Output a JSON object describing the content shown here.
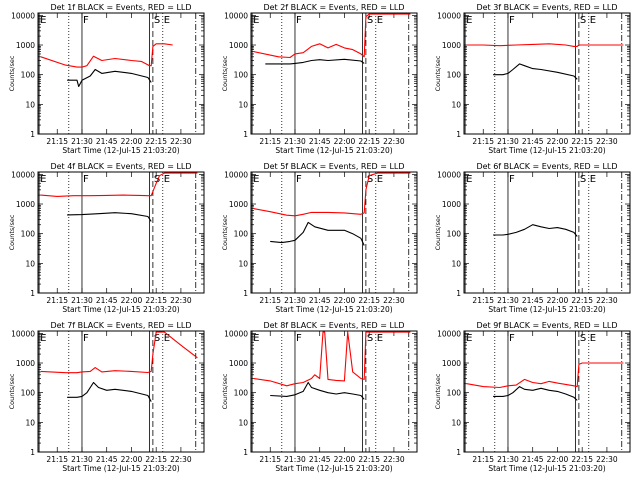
{
  "common": {
    "xlabel": "Start Time (12-Jul-15 21:03:20)",
    "ylabel": "Counts/sec",
    "x_tick_labels": [
      "21:15",
      "21:30",
      "21:45",
      "22:00",
      "22:15",
      "22:30"
    ],
    "x_tick_minutes": [
      15,
      30,
      45,
      60,
      75,
      90
    ],
    "y_tick_labels": [
      "1",
      "10",
      "100",
      "1000",
      "10000"
    ],
    "x_range_minutes": [
      3.33,
      104
    ],
    "y_range": [
      1,
      12000
    ],
    "y_scale": "log",
    "colors": {
      "events": "#000000",
      "lld": "#ff0000",
      "axes": "#000000"
    }
  },
  "chart_data": [
    {
      "type": "line",
      "title": "Det 1f BLACK = Events, RED = LLD",
      "markers": [
        {
          "label": "E",
          "x": 4,
          "style": "solid"
        },
        {
          "label": "F",
          "x": 30,
          "style": "solid"
        },
        {
          "label": "",
          "x": 22,
          "style": "dotted"
        },
        {
          "label": "",
          "x": 71,
          "style": "solid"
        },
        {
          "label": "S",
          "x": 73,
          "style": "dashed"
        },
        {
          "label": "E",
          "x": 79,
          "style": "dotted"
        },
        {
          "label": "",
          "x": 99,
          "style": "dashdot"
        }
      ],
      "series": [
        {
          "color": "#ff0000",
          "x": [
            5,
            20,
            27,
            30,
            33,
            37,
            42,
            50,
            60,
            66,
            71,
            72,
            73,
            75,
            80,
            85
          ],
          "y": [
            400,
            210,
            180,
            180,
            200,
            420,
            300,
            350,
            300,
            280,
            200,
            200,
            900,
            1100,
            1100,
            1000
          ]
        },
        {
          "color": "#000000",
          "x": [
            21,
            27,
            28,
            30,
            35,
            38,
            42,
            50,
            60,
            70,
            72
          ],
          "y": [
            65,
            65,
            40,
            65,
            90,
            150,
            110,
            130,
            110,
            80,
            55
          ]
        }
      ]
    },
    {
      "type": "line",
      "title": "Det 2f BLACK = Events, RED = LLD",
      "markers": [
        {
          "label": "E",
          "x": 4,
          "style": "solid"
        },
        {
          "label": "F",
          "x": 30,
          "style": "solid"
        },
        {
          "label": "",
          "x": 22,
          "style": "dotted"
        },
        {
          "label": "",
          "x": 71,
          "style": "solid"
        },
        {
          "label": "S",
          "x": 73,
          "style": "dashed"
        },
        {
          "label": "E",
          "x": 79,
          "style": "dotted"
        },
        {
          "label": "",
          "x": 99,
          "style": "dashdot"
        }
      ],
      "series": [
        {
          "color": "#ff0000",
          "x": [
            5,
            20,
            27,
            30,
            35,
            40,
            45,
            50,
            55,
            60,
            65,
            70,
            72,
            73,
            75,
            80,
            85,
            95,
            100
          ],
          "y": [
            600,
            400,
            380,
            500,
            550,
            900,
            1100,
            800,
            1050,
            800,
            700,
            500,
            400,
            9000,
            11000,
            11000,
            11000,
            11000,
            11000
          ]
        },
        {
          "color": "#000000",
          "x": [
            12,
            27,
            30,
            35,
            40,
            45,
            50,
            60,
            70,
            72
          ],
          "y": [
            230,
            230,
            240,
            260,
            300,
            320,
            300,
            330,
            290,
            240
          ]
        }
      ]
    },
    {
      "type": "line",
      "title": "Det 3f BLACK = Events, RED = LLD",
      "markers": [
        {
          "label": "E",
          "x": 4,
          "style": "solid"
        },
        {
          "label": "F",
          "x": 30,
          "style": "solid"
        },
        {
          "label": "",
          "x": 22,
          "style": "dotted"
        },
        {
          "label": "",
          "x": 71,
          "style": "solid"
        },
        {
          "label": "S",
          "x": 73,
          "style": "dashed"
        },
        {
          "label": "E",
          "x": 79,
          "style": "dotted"
        },
        {
          "label": "",
          "x": 99,
          "style": "dashdot"
        }
      ],
      "series": [
        {
          "color": "#ff0000",
          "x": [
            5,
            15,
            25,
            35,
            45,
            55,
            65,
            70,
            72,
            73,
            80,
            90,
            100
          ],
          "y": [
            1000,
            1000,
            950,
            1000,
            1050,
            1100,
            1000,
            900,
            900,
            1000,
            1000,
            1000,
            1000
          ]
        },
        {
          "color": "#000000",
          "x": [
            21,
            27,
            30,
            33,
            37,
            40,
            45,
            50,
            60,
            70,
            72
          ],
          "y": [
            100,
            100,
            110,
            150,
            230,
            200,
            160,
            150,
            120,
            90,
            70
          ]
        }
      ]
    },
    {
      "type": "line",
      "title": "Det 4f BLACK = Events, RED = LLD",
      "markers": [
        {
          "label": "E",
          "x": 4,
          "style": "solid"
        },
        {
          "label": "F",
          "x": 30,
          "style": "solid"
        },
        {
          "label": "",
          "x": 22,
          "style": "dotted"
        },
        {
          "label": "",
          "x": 71,
          "style": "solid"
        },
        {
          "label": "S",
          "x": 73,
          "style": "dashed"
        },
        {
          "label": "E",
          "x": 79,
          "style": "dotted"
        },
        {
          "label": "",
          "x": 99,
          "style": "dashdot"
        }
      ],
      "series": [
        {
          "color": "#ff0000",
          "x": [
            5,
            15,
            25,
            35,
            45,
            55,
            65,
            70,
            72,
            75,
            77,
            80,
            85,
            100
          ],
          "y": [
            2000,
            1800,
            1900,
            1900,
            1950,
            2000,
            1950,
            1900,
            1900,
            5000,
            9000,
            11000,
            11000,
            11000
          ]
        },
        {
          "color": "#000000",
          "x": [
            21,
            30,
            40,
            50,
            60,
            70,
            72
          ],
          "y": [
            430,
            440,
            470,
            510,
            470,
            380,
            260
          ]
        }
      ]
    },
    {
      "type": "line",
      "title": "Det 5f BLACK = Events, RED = LLD",
      "markers": [
        {
          "label": "E",
          "x": 4,
          "style": "solid"
        },
        {
          "label": "F",
          "x": 30,
          "style": "solid"
        },
        {
          "label": "",
          "x": 22,
          "style": "dotted"
        },
        {
          "label": "",
          "x": 71,
          "style": "solid"
        },
        {
          "label": "S",
          "x": 73,
          "style": "dashed"
        },
        {
          "label": "E",
          "x": 79,
          "style": "dotted"
        },
        {
          "label": "",
          "x": 99,
          "style": "dashdot"
        }
      ],
      "series": [
        {
          "color": "#ff0000",
          "x": [
            5,
            15,
            25,
            30,
            35,
            40,
            50,
            60,
            70,
            72,
            73,
            75,
            80,
            100
          ],
          "y": [
            700,
            550,
            420,
            400,
            450,
            520,
            520,
            500,
            450,
            500,
            3000,
            9000,
            11000,
            11000
          ]
        },
        {
          "color": "#000000",
          "x": [
            15,
            22,
            27,
            30,
            35,
            38,
            42,
            50,
            60,
            65,
            70,
            72
          ],
          "y": [
            55,
            50,
            55,
            60,
            110,
            240,
            170,
            130,
            130,
            100,
            70,
            40
          ]
        }
      ]
    },
    {
      "type": "line",
      "title": "Det 6f BLACK = Events, RED = LLD",
      "markers": [
        {
          "label": "E",
          "x": 4,
          "style": "solid"
        },
        {
          "label": "F",
          "x": 30,
          "style": "solid"
        },
        {
          "label": "",
          "x": 22,
          "style": "dotted"
        },
        {
          "label": "",
          "x": 71,
          "style": "solid"
        },
        {
          "label": "S",
          "x": 73,
          "style": "dashed"
        },
        {
          "label": "E",
          "x": 79,
          "style": "dotted"
        },
        {
          "label": "",
          "x": 99,
          "style": "dashdot"
        }
      ],
      "series": [
        {
          "color": "#000000",
          "x": [
            21,
            27,
            30,
            35,
            40,
            45,
            50,
            55,
            60,
            65,
            70,
            72
          ],
          "y": [
            90,
            90,
            95,
            110,
            140,
            200,
            170,
            150,
            160,
            140,
            110,
            80
          ]
        }
      ]
    },
    {
      "type": "line",
      "title": "Det 7f BLACK = Events, RED = LLD",
      "markers": [
        {
          "label": "E",
          "x": 4,
          "style": "solid"
        },
        {
          "label": "F",
          "x": 30,
          "style": "solid"
        },
        {
          "label": "",
          "x": 22,
          "style": "dotted"
        },
        {
          "label": "",
          "x": 71,
          "style": "solid"
        },
        {
          "label": "S",
          "x": 73,
          "style": "dashed"
        },
        {
          "label": "E",
          "x": 79,
          "style": "dotted"
        },
        {
          "label": "",
          "x": 99,
          "style": "dashdot"
        }
      ],
      "series": [
        {
          "color": "#ff0000",
          "x": [
            5,
            20,
            27,
            30,
            35,
            38,
            42,
            50,
            60,
            70,
            72,
            73,
            75,
            80,
            90,
            100
          ],
          "y": [
            520,
            470,
            470,
            500,
            520,
            700,
            500,
            550,
            520,
            480,
            520,
            2000,
            11000,
            11000,
            4000,
            1500
          ]
        },
        {
          "color": "#000000",
          "x": [
            21,
            27,
            30,
            33,
            37,
            40,
            45,
            50,
            60,
            70,
            72
          ],
          "y": [
            70,
            70,
            75,
            100,
            220,
            150,
            120,
            130,
            110,
            80,
            50
          ]
        }
      ]
    },
    {
      "type": "line",
      "title": "Det 8f BLACK = Events, RED = LLD",
      "markers": [
        {
          "label": "E",
          "x": 4,
          "style": "solid"
        },
        {
          "label": "F",
          "x": 30,
          "style": "solid"
        },
        {
          "label": "",
          "x": 22,
          "style": "dotted"
        },
        {
          "label": "",
          "x": 71,
          "style": "solid"
        },
        {
          "label": "S",
          "x": 73,
          "style": "dashed"
        },
        {
          "label": "E",
          "x": 79,
          "style": "dotted"
        },
        {
          "label": "",
          "x": 99,
          "style": "dashdot"
        }
      ],
      "series": [
        {
          "color": "#ff0000",
          "x": [
            5,
            15,
            25,
            30,
            35,
            40,
            42,
            45,
            47,
            48,
            50,
            55,
            60,
            62,
            65,
            70,
            72,
            73,
            75,
            80,
            100
          ],
          "y": [
            300,
            250,
            170,
            200,
            220,
            300,
            400,
            300,
            11000,
            11000,
            280,
            260,
            250,
            11000,
            500,
            300,
            280,
            11000,
            11000,
            11000,
            11000
          ]
        },
        {
          "color": "#000000",
          "x": [
            15,
            25,
            30,
            35,
            38,
            40,
            45,
            50,
            55,
            60,
            65,
            70,
            72
          ],
          "y": [
            80,
            75,
            85,
            110,
            220,
            150,
            120,
            100,
            90,
            100,
            90,
            80,
            60
          ]
        }
      ]
    },
    {
      "type": "line",
      "title": "Det 9f BLACK = Events, RED = LLD",
      "markers": [
        {
          "label": "E",
          "x": 4,
          "style": "solid"
        },
        {
          "label": "F",
          "x": 30,
          "style": "solid"
        },
        {
          "label": "",
          "x": 22,
          "style": "dotted"
        },
        {
          "label": "",
          "x": 71,
          "style": "solid"
        },
        {
          "label": "S",
          "x": 73,
          "style": "dashed"
        },
        {
          "label": "E",
          "x": 79,
          "style": "dotted"
        },
        {
          "label": "",
          "x": 99,
          "style": "dashdot"
        }
      ],
      "series": [
        {
          "color": "#ff0000",
          "x": [
            5,
            15,
            25,
            30,
            35,
            40,
            45,
            50,
            55,
            60,
            65,
            70,
            72,
            73,
            75,
            80,
            100
          ],
          "y": [
            200,
            160,
            150,
            170,
            180,
            280,
            220,
            200,
            240,
            210,
            190,
            170,
            160,
            900,
            1000,
            1000,
            1000
          ]
        },
        {
          "color": "#000000",
          "x": [
            21,
            27,
            30,
            33,
            37,
            40,
            45,
            50,
            55,
            60,
            65,
            70,
            72
          ],
          "y": [
            75,
            75,
            80,
            100,
            160,
            130,
            120,
            140,
            120,
            110,
            90,
            70,
            55
          ]
        }
      ]
    }
  ]
}
